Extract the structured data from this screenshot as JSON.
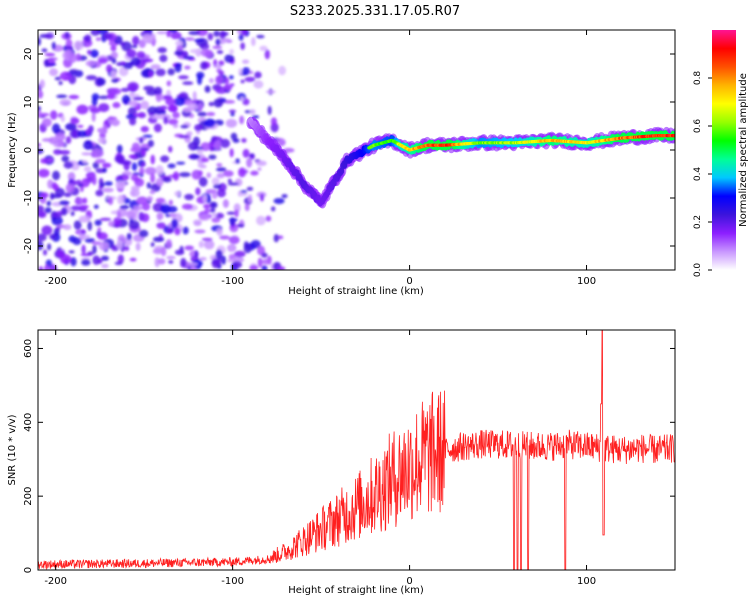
{
  "title": "S233.2025.331.17.05.R07",
  "chart_data": [
    {
      "type": "heatmap",
      "xlabel": "Height of straight line (km)",
      "ylabel": "Frequency (Hz)",
      "xlim": [
        -210,
        150
      ],
      "ylim": [
        -25,
        25
      ],
      "xticks": [
        -200,
        -100,
        0,
        100
      ],
      "yticks": [
        -20,
        -10,
        0,
        10,
        20
      ],
      "colorbar": {
        "label": "Normalized spectral amplitude",
        "range": [
          0,
          1
        ],
        "ticks": [
          0.0,
          0.2,
          0.4,
          0.6,
          0.8
        ],
        "tick_labels": [
          "0.0",
          "0.2",
          "0.4",
          "0.6",
          "0.8"
        ],
        "colormap": [
          "#ffffff",
          "#c896ff",
          "#8c1eff",
          "#3c14dc",
          "#0000ff",
          "#00c8ff",
          "#00ff96",
          "#00ff00",
          "#96ff00",
          "#ffff00",
          "#ffb400",
          "#ff5000",
          "#ff0000",
          "#ff1493"
        ]
      },
      "ridge": {
        "name": "frequency ridge",
        "x": [
          -90,
          -80,
          -70,
          -60,
          -50,
          -40,
          -35,
          -30,
          -20,
          -10,
          -5,
          0,
          10,
          20,
          40,
          60,
          80,
          100,
          120,
          140,
          150
        ],
        "y": [
          6,
          2,
          -2,
          -7,
          -11,
          -5,
          -2,
          -1,
          1,
          2,
          1,
          0,
          1,
          1,
          1.5,
          1.5,
          2,
          1.5,
          2.5,
          3,
          3
        ],
        "amplitude": [
          0.15,
          0.25,
          0.3,
          0.35,
          0.3,
          0.35,
          0.4,
          0.45,
          0.6,
          0.55,
          0.7,
          0.75,
          0.85,
          0.9,
          0.6,
          0.65,
          0.8,
          0.7,
          0.85,
          0.9,
          0.9
        ]
      }
    },
    {
      "type": "line",
      "xlabel": "Height of straight line (km)",
      "ylabel": "SNR (10 * v/v)",
      "xlim": [
        -210,
        150
      ],
      "ylim": [
        0,
        650
      ],
      "xticks": [
        -200,
        -100,
        0,
        100
      ],
      "yticks": [
        0,
        200,
        400,
        600
      ],
      "color": "#ff2020",
      "series": [
        {
          "name": "SNR",
          "x": [
            -210,
            -150,
            -100,
            -80,
            -70,
            -60,
            -50,
            -40,
            -30,
            -20,
            -10,
            0,
            10,
            20,
            30,
            40,
            50,
            60,
            70,
            80,
            90,
            100,
            110,
            120,
            130,
            140,
            150
          ],
          "y": [
            15,
            18,
            22,
            30,
            50,
            80,
            110,
            140,
            170,
            205,
            245,
            280,
            310,
            325,
            335,
            340,
            340,
            338,
            335,
            335,
            340,
            335,
            330,
            325,
            330,
            325,
            330
          ]
        }
      ],
      "annotations": {
        "dropouts_x": [
          59,
          61,
          63,
          67,
          88
        ],
        "spike": {
          "x": 109,
          "y": 650,
          "min": 95
        }
      }
    }
  ]
}
